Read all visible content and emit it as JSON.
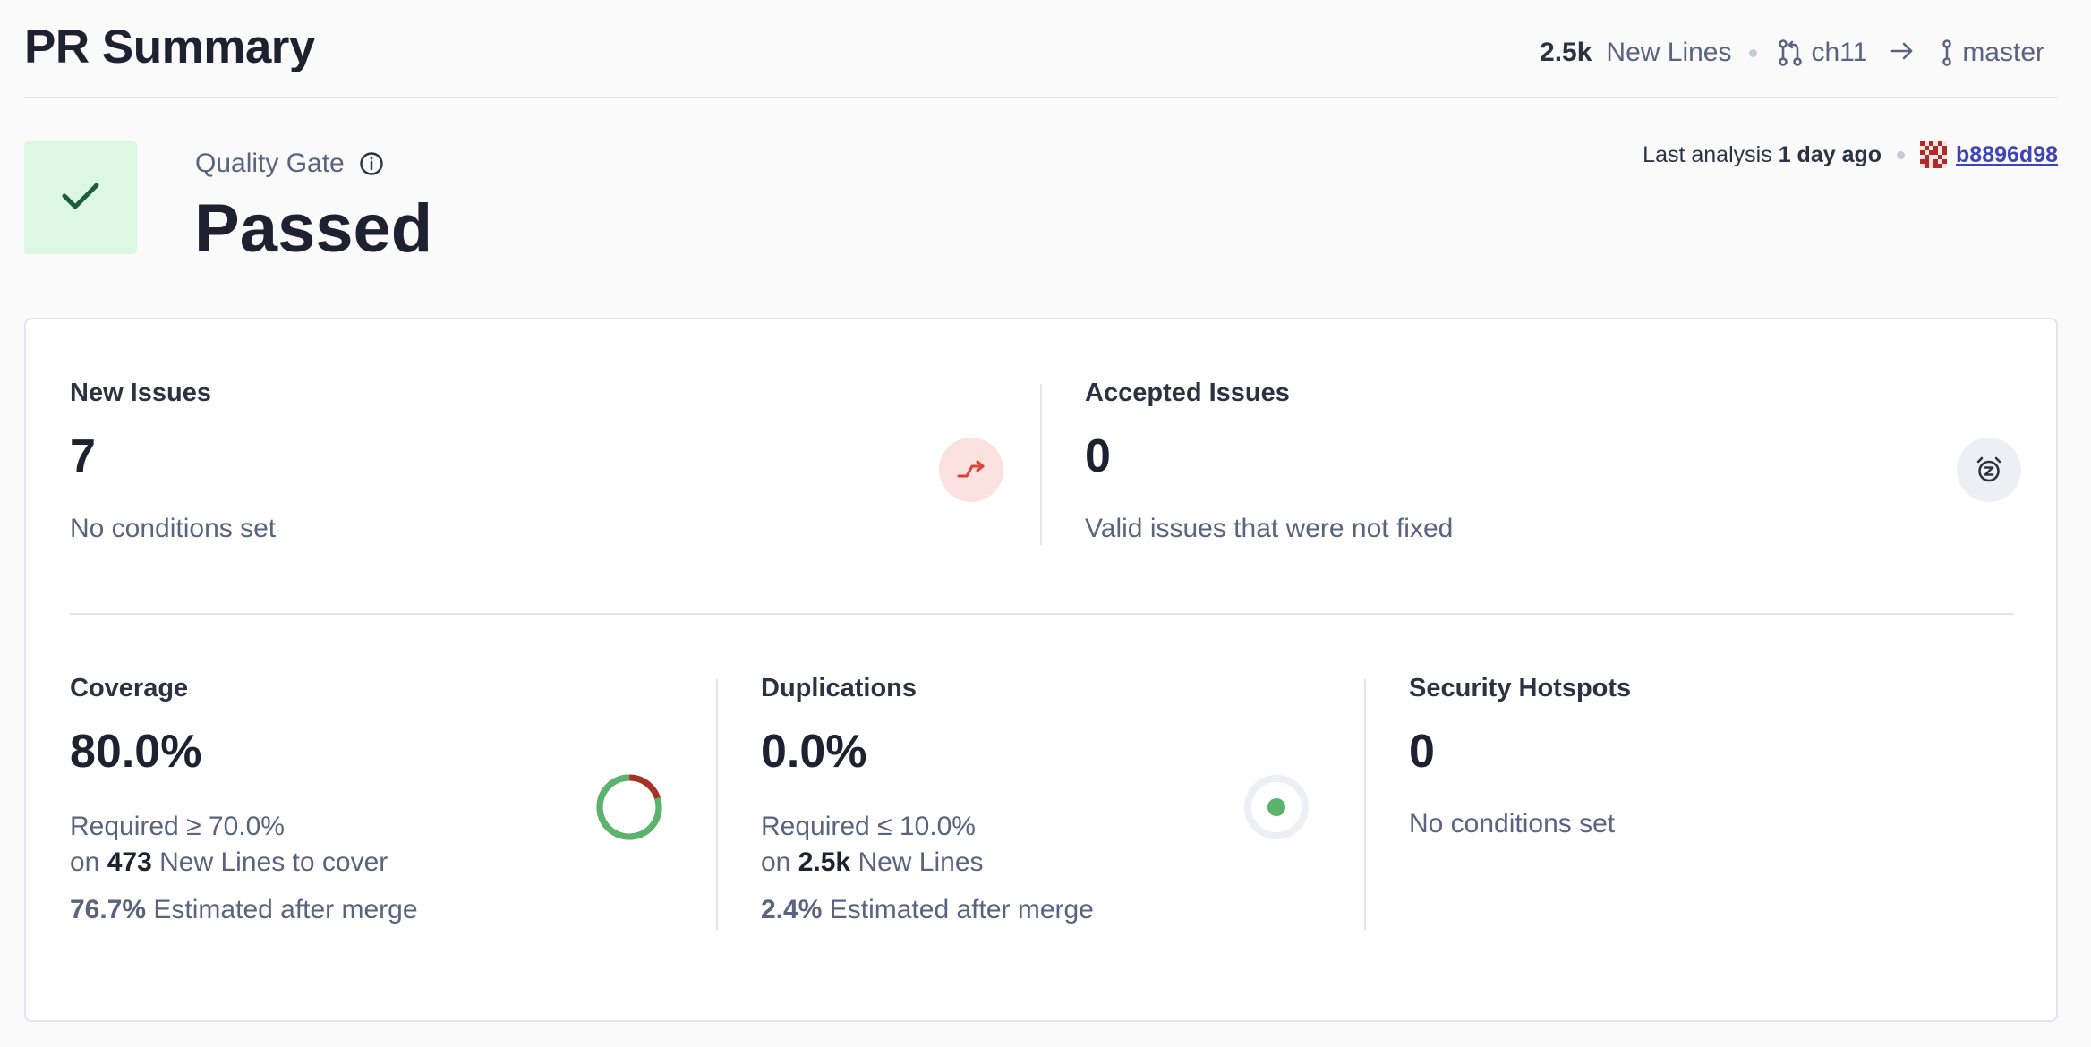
{
  "header": {
    "title": "PR Summary",
    "new_lines_count": "2.5k",
    "new_lines_label": "New Lines",
    "source_branch": "ch11",
    "target_branch": "master"
  },
  "quality_gate": {
    "label": "Quality Gate",
    "status": "Passed",
    "last_analysis_label": "Last analysis",
    "last_analysis_time": "1 day ago",
    "commit": "b8896d98"
  },
  "metrics": {
    "new_issues": {
      "title": "New Issues",
      "value": "7",
      "subtitle": "No conditions set"
    },
    "accepted_issues": {
      "title": "Accepted Issues",
      "value": "0",
      "subtitle": "Valid issues that were not fixed"
    },
    "coverage": {
      "title": "Coverage",
      "value": "80.0%",
      "required": "Required ≥ 70.0%",
      "on_label": "on",
      "lines": "473",
      "lines_label": "New Lines to cover",
      "estimated": "76.7%",
      "estimated_label": "Estimated after merge",
      "donut_fraction": 0.8
    },
    "duplications": {
      "title": "Duplications",
      "value": "0.0%",
      "required": "Required ≤ 10.0%",
      "on_label": "on",
      "lines": "2.5k",
      "lines_label": "New Lines",
      "estimated": "2.4%",
      "estimated_label": "Estimated after merge"
    },
    "security_hotspots": {
      "title": "Security Hotspots",
      "value": "0",
      "subtitle": "No conditions set"
    }
  },
  "colors": {
    "passed_bg": "#dcf7e2",
    "passed_check": "#1b5e3a",
    "coverage_good": "#5bb36e",
    "coverage_bad": "#a63226",
    "issue_icon_bg": "#fbe1df",
    "issue_icon": "#d9453a",
    "link": "#3e43b8"
  }
}
